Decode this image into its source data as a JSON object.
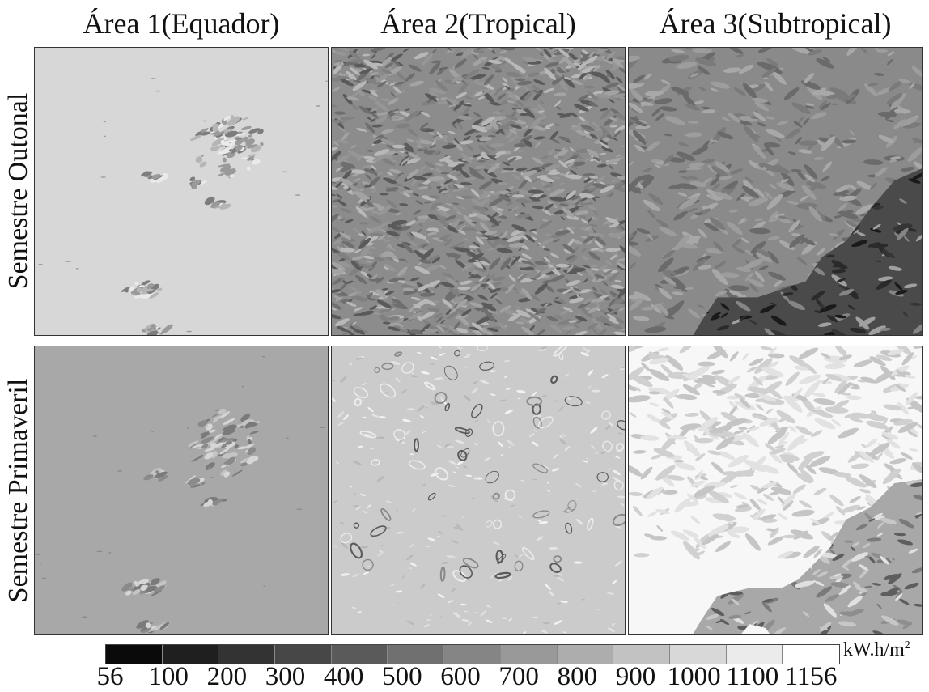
{
  "columns": [
    "Área 1(Equador)",
    "Área 2(Tropical)",
    "Área 3(Subtropical)"
  ],
  "rows": [
    "Semestre Outonal",
    "Semestre Primaveril"
  ],
  "legend": {
    "unit": "kW.h/m",
    "unit_sup": "2",
    "ticks": [
      "56",
      "100",
      "200",
      "300",
      "400",
      "500",
      "600",
      "700",
      "800",
      "900",
      "1000",
      "1100",
      "1156"
    ],
    "colors": [
      "#0a0a0a",
      "#1f1f1f",
      "#333333",
      "#474747",
      "#5a5a5a",
      "#707070",
      "#858585",
      "#999999",
      "#adadad",
      "#c2c2c2",
      "#d8d8d8",
      "#ebebeb",
      "#ffffff"
    ]
  },
  "panels": [
    {
      "row": 0,
      "col": 0,
      "base_color": "#d7d7d7",
      "texture": "sparse-patches"
    },
    {
      "row": 0,
      "col": 1,
      "base_color": "#8c8c8c",
      "texture": "dense-shaded-relief"
    },
    {
      "row": 0,
      "col": 2,
      "base_color": "#8a8a8a",
      "texture": "relief-dark-mountains"
    },
    {
      "row": 1,
      "col": 0,
      "base_color": "#a8a8a8",
      "texture": "sparse-patches"
    },
    {
      "row": 1,
      "col": 1,
      "base_color": "#cbcbcb",
      "texture": "scattered-contours"
    },
    {
      "row": 1,
      "col": 2,
      "base_color": "#f7f7f7",
      "texture": "light-with-mountains"
    }
  ]
}
